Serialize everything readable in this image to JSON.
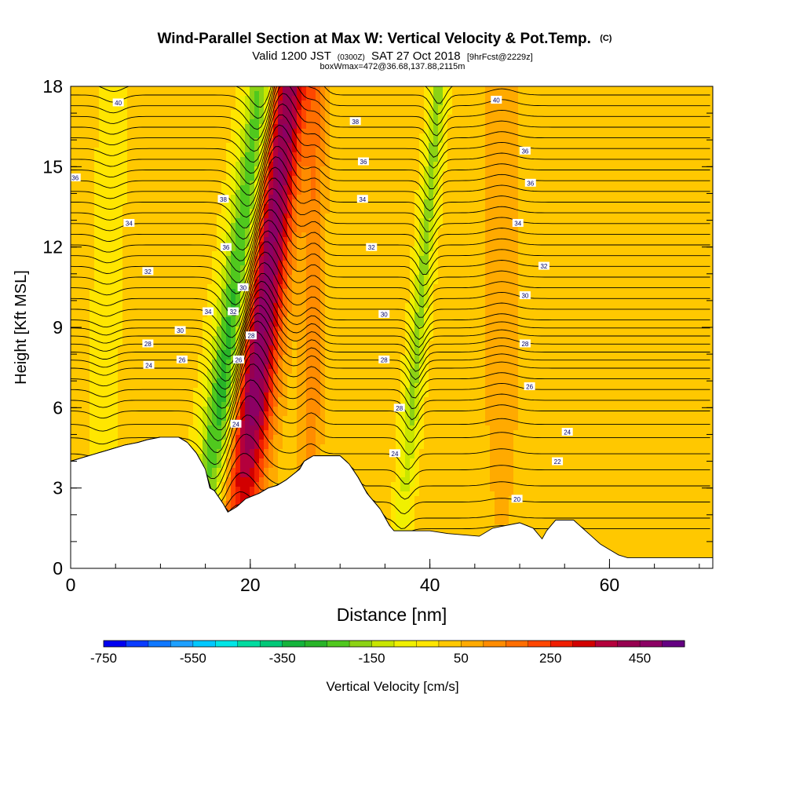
{
  "chart_data": {
    "type": "heatmap",
    "title": "Wind-Parallel Section at Max W: Vertical Velocity & Pot.Temp.",
    "title_mark": "(C)",
    "subtitle_parts": [
      "Valid 1200 JST",
      "(0300Z)",
      "SAT 27 Oct 2018",
      "[9hrFcst@2229z]"
    ],
    "subtitle2": "boxWmax=472@36.68,137.88,2115m",
    "xlabel": "Distance [nm]",
    "ylabel": "Height [Kft MSL]",
    "xlim": [
      0,
      71.5
    ],
    "ylim": [
      0,
      18
    ],
    "xticks": [
      0,
      20,
      40,
      60
    ],
    "xminor_step": 5,
    "yticks": [
      0,
      3,
      6,
      9,
      12,
      15,
      18
    ],
    "yminor_step": 1,
    "grid": false,
    "colorbar": {
      "label": "Vertical Velocity [cm/s]",
      "min": -750,
      "max": 550,
      "tick_labels": [
        "-750",
        "-550",
        "-350",
        "-150",
        "50",
        "250",
        "450"
      ],
      "tick_values": [
        -750,
        -550,
        -350,
        -150,
        50,
        250,
        450
      ],
      "colors": [
        "#0000f0",
        "#0a3cff",
        "#0f78ff",
        "#1ea0ff",
        "#00c8ff",
        "#00e6e6",
        "#00dca0",
        "#00c878",
        "#14b43c",
        "#28b428",
        "#50c81e",
        "#8cd214",
        "#c8e600",
        "#f0f000",
        "#ffe600",
        "#ffc800",
        "#ffaa00",
        "#ff8c00",
        "#ff6e00",
        "#ff4600",
        "#f01e00",
        "#d20000",
        "#b4003c",
        "#960050",
        "#8c0064",
        "#640082"
      ]
    },
    "terrain_profile": {
      "distance_nm": [
        0,
        2,
        4,
        6,
        7.5,
        8.5,
        10,
        12,
        13,
        14,
        15,
        15.5,
        16,
        17,
        17.5,
        18.5,
        19.5,
        21,
        22,
        23,
        24,
        25.5,
        26,
        27,
        30,
        31,
        32,
        33,
        34.5,
        35,
        35.5,
        36,
        37,
        40,
        42,
        45.5,
        47,
        50,
        51.5,
        52.5,
        53,
        54,
        56,
        57,
        58,
        59,
        60,
        61,
        62,
        71.5
      ],
      "height_kft": [
        4.0,
        4.2,
        4.4,
        4.6,
        4.7,
        4.8,
        4.9,
        4.9,
        4.7,
        4.3,
        3.7,
        3.0,
        2.9,
        2.4,
        2.1,
        2.3,
        2.6,
        2.8,
        3.0,
        3.1,
        3.3,
        3.7,
        4.0,
        4.2,
        4.2,
        3.9,
        3.4,
        2.8,
        2.2,
        1.9,
        1.6,
        1.4,
        1.4,
        1.4,
        1.3,
        1.2,
        1.5,
        1.7,
        1.5,
        1.1,
        1.4,
        1.8,
        1.8,
        1.5,
        1.2,
        0.9,
        0.7,
        0.5,
        0.4,
        0.4
      ]
    },
    "updraft_cores": [
      {
        "center_nm_at_ground": 18.3,
        "tilt_nm_per_kft": 0.32,
        "width_nm": 4.5,
        "peak_cm_s": 472
      },
      {
        "center_nm_at_ground": 26.5,
        "tilt_nm_per_kft": 0.05,
        "width_nm": 2.4,
        "peak_cm_s": 120
      },
      {
        "center_nm_at_ground": 48.0,
        "tilt_nm_per_kft": 0.0,
        "width_nm": 4.0,
        "peak_cm_s": 60
      }
    ],
    "downdraft_cores": [
      {
        "center_nm_at_ground": 14.4,
        "tilt_nm_per_kft": 0.4,
        "width_nm": 3.8,
        "peak_cm_s": -330
      },
      {
        "center_nm_at_ground": 36.5,
        "tilt_nm_per_kft": 0.25,
        "width_nm": 2.0,
        "peak_cm_s": -190
      },
      {
        "center_nm_at_ground": 3.0,
        "tilt_nm_per_kft": 0.1,
        "width_nm": 3.0,
        "peak_cm_s": -70
      }
    ],
    "isentropes": {
      "base_height_kft": [
        1.4,
        1.8,
        2.4,
        3.0,
        3.6,
        4.2,
        4.8,
        5.3,
        5.8,
        6.2,
        6.6,
        7.0,
        7.4,
        7.7,
        8.0,
        8.3,
        8.6,
        8.9,
        9.2,
        9.6,
        10.0,
        10.4,
        10.8,
        11.2,
        11.6,
        12.0,
        12.4,
        12.8,
        13.2,
        13.6,
        14.0,
        14.4,
        14.8,
        15.2,
        15.6,
        16.0,
        16.4,
        16.8,
        17.2,
        17.6,
        18.0
      ],
      "labeled_values": [
        "40",
        "38",
        "36",
        "34",
        "32",
        "30",
        "28",
        "26",
        "24",
        "22",
        "20"
      ],
      "labels": [
        {
          "text": "40",
          "x_nm": 5.3,
          "y_kft": 17.4
        },
        {
          "text": "36",
          "x_nm": 0.5,
          "y_kft": 14.6
        },
        {
          "text": "34",
          "x_nm": 6.5,
          "y_kft": 12.9
        },
        {
          "text": "32",
          "x_nm": 8.6,
          "y_kft": 11.1
        },
        {
          "text": "30",
          "x_nm": 12.2,
          "y_kft": 8.9
        },
        {
          "text": "28",
          "x_nm": 8.6,
          "y_kft": 8.4
        },
        {
          "text": "26",
          "x_nm": 12.4,
          "y_kft": 7.8
        },
        {
          "text": "24",
          "x_nm": 8.7,
          "y_kft": 7.6
        },
        {
          "text": "38",
          "x_nm": 17.0,
          "y_kft": 13.8
        },
        {
          "text": "36",
          "x_nm": 17.3,
          "y_kft": 12.0
        },
        {
          "text": "34",
          "x_nm": 15.3,
          "y_kft": 9.6
        },
        {
          "text": "30",
          "x_nm": 19.2,
          "y_kft": 10.5
        },
        {
          "text": "32",
          "x_nm": 18.1,
          "y_kft": 9.6
        },
        {
          "text": "28",
          "x_nm": 20.1,
          "y_kft": 8.7
        },
        {
          "text": "26",
          "x_nm": 18.7,
          "y_kft": 7.8
        },
        {
          "text": "24",
          "x_nm": 18.4,
          "y_kft": 5.4
        },
        {
          "text": "38",
          "x_nm": 31.7,
          "y_kft": 16.7
        },
        {
          "text": "36",
          "x_nm": 32.6,
          "y_kft": 15.2
        },
        {
          "text": "34",
          "x_nm": 32.5,
          "y_kft": 13.8
        },
        {
          "text": "32",
          "x_nm": 33.5,
          "y_kft": 12.0
        },
        {
          "text": "30",
          "x_nm": 34.9,
          "y_kft": 9.5
        },
        {
          "text": "28",
          "x_nm": 34.9,
          "y_kft": 7.8
        },
        {
          "text": "28",
          "x_nm": 36.6,
          "y_kft": 6.0
        },
        {
          "text": "24",
          "x_nm": 36.1,
          "y_kft": 4.3
        },
        {
          "text": "40",
          "x_nm": 47.4,
          "y_kft": 17.5
        },
        {
          "text": "36",
          "x_nm": 50.6,
          "y_kft": 15.6
        },
        {
          "text": "36",
          "x_nm": 51.2,
          "y_kft": 14.4
        },
        {
          "text": "34",
          "x_nm": 49.8,
          "y_kft": 12.9
        },
        {
          "text": "32",
          "x_nm": 52.7,
          "y_kft": 11.3
        },
        {
          "text": "30",
          "x_nm": 50.6,
          "y_kft": 10.2
        },
        {
          "text": "28",
          "x_nm": 50.6,
          "y_kft": 8.4
        },
        {
          "text": "26",
          "x_nm": 51.1,
          "y_kft": 6.8
        },
        {
          "text": "24",
          "x_nm": 55.3,
          "y_kft": 5.1
        },
        {
          "text": "22",
          "x_nm": 54.2,
          "y_kft": 4.0
        },
        {
          "text": "20",
          "x_nm": 49.7,
          "y_kft": 2.6
        }
      ]
    }
  }
}
